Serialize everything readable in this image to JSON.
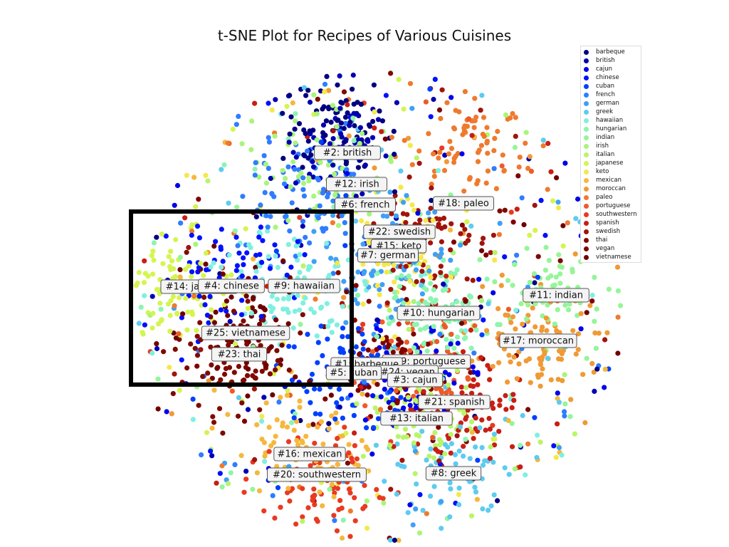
{
  "chart_data": {
    "type": "scatter",
    "title": "t-SNE Plot for Recipes of Various Cuisines",
    "xlabel": "",
    "ylabel": "",
    "grid": false,
    "axes_visible": false,
    "legend_placement": "top-right",
    "series": [
      {
        "name": "barbeque",
        "color": "#00007f"
      },
      {
        "name": "british",
        "color": "#0000b2"
      },
      {
        "name": "cajun",
        "color": "#0000ea"
      },
      {
        "name": "chinese",
        "color": "#0010ff"
      },
      {
        "name": "cuban",
        "color": "#0040ff"
      },
      {
        "name": "french",
        "color": "#2f7dff"
      },
      {
        "name": "german",
        "color": "#3fa0f5"
      },
      {
        "name": "greek",
        "color": "#5ecbf0"
      },
      {
        "name": "hawaiian",
        "color": "#7ff0e0"
      },
      {
        "name": "hungarian",
        "color": "#8cf5b0"
      },
      {
        "name": "indian",
        "color": "#96f598"
      },
      {
        "name": "irish",
        "color": "#a7f57a"
      },
      {
        "name": "italian",
        "color": "#b8f568"
      },
      {
        "name": "japanese",
        "color": "#d4f550"
      },
      {
        "name": "keto",
        "color": "#f5e84a"
      },
      {
        "name": "mexican",
        "color": "#f5b83e"
      },
      {
        "name": "moroccan",
        "color": "#f09a36"
      },
      {
        "name": "paleo",
        "color": "#ef7a2e"
      },
      {
        "name": "portuguese",
        "color": "#ee5a28"
      },
      {
        "name": "southwestern",
        "color": "#e83a22"
      },
      {
        "name": "spanish",
        "color": "#c81e14"
      },
      {
        "name": "swedish",
        "color": "#a0140c"
      },
      {
        "name": "thai",
        "color": "#7f0a00"
      },
      {
        "name": "vegan",
        "color": "#800000"
      },
      {
        "name": "vietnamese",
        "color": "#700000"
      }
    ],
    "cluster_labels": [
      {
        "text": "#2: british",
        "series": "british"
      },
      {
        "text": "#12: irish",
        "series": "irish"
      },
      {
        "text": "#6: french",
        "series": "french"
      },
      {
        "text": "#18: paleo",
        "series": "paleo"
      },
      {
        "text": "#22: swedish",
        "series": "swedish"
      },
      {
        "text": "#15: keto",
        "series": "keto"
      },
      {
        "text": "#7: german",
        "series": "german"
      },
      {
        "text": "#14: japanese",
        "series": "japanese"
      },
      {
        "text": "#9: hawaiian",
        "series": "hawaiian"
      },
      {
        "text": "#11: indian",
        "series": "indian"
      },
      {
        "text": "#10: hungarian",
        "series": "hungarian"
      },
      {
        "text": "#25: vietnamese",
        "series": "vietnamese"
      },
      {
        "text": "#17: moroccan",
        "series": "moroccan"
      },
      {
        "text": "#23: thai",
        "series": "thai"
      },
      {
        "text": "#19: portuguese",
        "series": "portuguese"
      },
      {
        "text": "#1: barbeque",
        "series": "barbeque"
      },
      {
        "text": "#24: vegan",
        "series": "vegan"
      },
      {
        "text": "#5: cuban",
        "series": "cuban"
      },
      {
        "text": "#3: cajun",
        "series": "cajun"
      },
      {
        "text": "#21: spanish",
        "series": "spanish"
      },
      {
        "text": "#13: italian",
        "series": "italian"
      },
      {
        "text": "#16: mexican",
        "series": "mexican"
      },
      {
        "text": "#20: southwestern",
        "series": "southwestern"
      },
      {
        "text": "#8: greek",
        "series": "greek"
      },
      {
        "text": "#4: chinese",
        "series": "chinese"
      }
    ]
  }
}
